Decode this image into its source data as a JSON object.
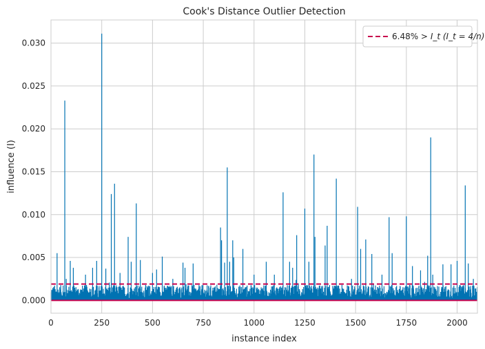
{
  "chart_data": {
    "type": "bar",
    "title": "Cook's Distance Outlier Detection",
    "xlabel": "instance index",
    "ylabel": "influence (I)",
    "xlim": [
      0,
      2100
    ],
    "ylim": [
      -0.0015,
      0.0327
    ],
    "x_ticks": [
      0,
      250,
      500,
      750,
      1000,
      1250,
      1500,
      1750,
      2000
    ],
    "y_ticks": [
      0.0,
      0.005,
      0.01,
      0.015,
      0.02,
      0.025,
      0.03
    ],
    "x_tick_labels": [
      "0",
      "250",
      "500",
      "750",
      "1000",
      "1250",
      "1500",
      "1750",
      "2000"
    ],
    "y_tick_labels": [
      "0.000",
      "0.005",
      "0.010",
      "0.015",
      "0.020",
      "0.025",
      "0.030"
    ],
    "grid": true,
    "legend_position": "top-right",
    "n_instances": 2100,
    "baseline_noise": {
      "typical_max": 0.0018
    },
    "spikes": [
      {
        "x": 30,
        "y": 0.0055
      },
      {
        "x": 68,
        "y": 0.0233
      },
      {
        "x": 75,
        "y": 0.0025
      },
      {
        "x": 95,
        "y": 0.0046
      },
      {
        "x": 110,
        "y": 0.0038
      },
      {
        "x": 170,
        "y": 0.003
      },
      {
        "x": 205,
        "y": 0.0038
      },
      {
        "x": 225,
        "y": 0.0046
      },
      {
        "x": 250,
        "y": 0.0311
      },
      {
        "x": 270,
        "y": 0.0037
      },
      {
        "x": 297,
        "y": 0.0124
      },
      {
        "x": 313,
        "y": 0.0136
      },
      {
        "x": 340,
        "y": 0.0032
      },
      {
        "x": 380,
        "y": 0.0074
      },
      {
        "x": 395,
        "y": 0.0045
      },
      {
        "x": 420,
        "y": 0.0113
      },
      {
        "x": 440,
        "y": 0.0047
      },
      {
        "x": 500,
        "y": 0.0032
      },
      {
        "x": 520,
        "y": 0.0036
      },
      {
        "x": 548,
        "y": 0.0051
      },
      {
        "x": 600,
        "y": 0.0025
      },
      {
        "x": 650,
        "y": 0.0044
      },
      {
        "x": 660,
        "y": 0.0038
      },
      {
        "x": 700,
        "y": 0.0043
      },
      {
        "x": 835,
        "y": 0.0085
      },
      {
        "x": 840,
        "y": 0.007
      },
      {
        "x": 855,
        "y": 0.0044
      },
      {
        "x": 868,
        "y": 0.0155
      },
      {
        "x": 880,
        "y": 0.0045
      },
      {
        "x": 895,
        "y": 0.007
      },
      {
        "x": 900,
        "y": 0.005
      },
      {
        "x": 945,
        "y": 0.006
      },
      {
        "x": 1000,
        "y": 0.003
      },
      {
        "x": 1060,
        "y": 0.0045
      },
      {
        "x": 1100,
        "y": 0.003
      },
      {
        "x": 1143,
        "y": 0.0126
      },
      {
        "x": 1175,
        "y": 0.0045
      },
      {
        "x": 1190,
        "y": 0.0038
      },
      {
        "x": 1210,
        "y": 0.0076
      },
      {
        "x": 1250,
        "y": 0.0107
      },
      {
        "x": 1270,
        "y": 0.0045
      },
      {
        "x": 1295,
        "y": 0.017
      },
      {
        "x": 1300,
        "y": 0.0074
      },
      {
        "x": 1350,
        "y": 0.0064
      },
      {
        "x": 1360,
        "y": 0.0087
      },
      {
        "x": 1405,
        "y": 0.0142
      },
      {
        "x": 1480,
        "y": 0.0025
      },
      {
        "x": 1510,
        "y": 0.0109
      },
      {
        "x": 1525,
        "y": 0.006
      },
      {
        "x": 1550,
        "y": 0.0071
      },
      {
        "x": 1580,
        "y": 0.0054
      },
      {
        "x": 1630,
        "y": 0.003
      },
      {
        "x": 1665,
        "y": 0.0097
      },
      {
        "x": 1680,
        "y": 0.0055
      },
      {
        "x": 1750,
        "y": 0.0098
      },
      {
        "x": 1780,
        "y": 0.004
      },
      {
        "x": 1820,
        "y": 0.0035
      },
      {
        "x": 1855,
        "y": 0.0052
      },
      {
        "x": 1870,
        "y": 0.019
      },
      {
        "x": 1880,
        "y": 0.003
      },
      {
        "x": 1930,
        "y": 0.0042
      },
      {
        "x": 1970,
        "y": 0.0042
      },
      {
        "x": 2000,
        "y": 0.0046
      },
      {
        "x": 2040,
        "y": 0.0134
      },
      {
        "x": 2055,
        "y": 0.0043
      },
      {
        "x": 2080,
        "y": 0.0025
      }
    ],
    "threshold": {
      "value": 0.0019,
      "style": "dashed"
    },
    "legend": {
      "prefix": "6.48% > ",
      "label_math": "I_t (I_t = 4/n)"
    }
  },
  "colors": {
    "bars": "#0072b2",
    "threshold": "#c7004c",
    "baseline": "#c7004c",
    "grid": "#cccccc",
    "axis": "#cccccc",
    "text": "#262626"
  }
}
